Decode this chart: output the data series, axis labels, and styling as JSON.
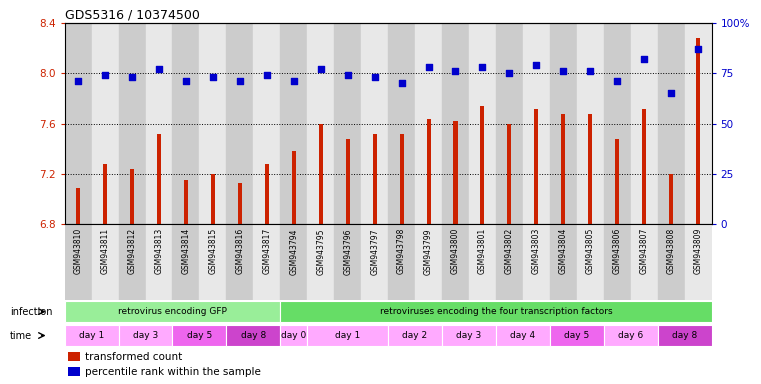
{
  "title": "GDS5316 / 10374500",
  "samples": [
    "GSM943810",
    "GSM943811",
    "GSM943812",
    "GSM943813",
    "GSM943814",
    "GSM943815",
    "GSM943816",
    "GSM943817",
    "GSM943794",
    "GSM943795",
    "GSM943796",
    "GSM943797",
    "GSM943798",
    "GSM943799",
    "GSM943800",
    "GSM943801",
    "GSM943802",
    "GSM943803",
    "GSM943804",
    "GSM943805",
    "GSM943806",
    "GSM943807",
    "GSM943808",
    "GSM943809"
  ],
  "red_values": [
    7.09,
    7.28,
    7.24,
    7.52,
    7.15,
    7.2,
    7.13,
    7.28,
    7.38,
    7.6,
    7.48,
    7.52,
    7.52,
    7.64,
    7.62,
    7.74,
    7.6,
    7.72,
    7.68,
    7.68,
    7.48,
    7.72,
    7.2,
    8.28
  ],
  "blue_values": [
    71,
    74,
    73,
    77,
    71,
    73,
    71,
    74,
    71,
    77,
    74,
    73,
    70,
    78,
    76,
    78,
    75,
    79,
    76,
    76,
    71,
    82,
    65,
    87
  ],
  "ylim_left": [
    6.8,
    8.4
  ],
  "ylim_right": [
    0,
    100
  ],
  "yticks_left": [
    6.8,
    7.2,
    7.6,
    8.0,
    8.4
  ],
  "yticks_right": [
    0,
    25,
    50,
    75,
    100
  ],
  "bar_color": "#cc2200",
  "dot_color": "#0000cc",
  "col_bg_even": "#cccccc",
  "col_bg_odd": "#e8e8e8",
  "infection_groups": [
    {
      "label": "retrovirus encoding GFP",
      "start": 0,
      "end": 7,
      "color": "#99ee99"
    },
    {
      "label": "retroviruses encoding the four transcription factors",
      "start": 8,
      "end": 23,
      "color": "#66dd66"
    }
  ],
  "time_groups": [
    {
      "label": "day 1",
      "start": 0,
      "end": 1,
      "color": "#ffaaff"
    },
    {
      "label": "day 3",
      "start": 2,
      "end": 3,
      "color": "#ffaaff"
    },
    {
      "label": "day 5",
      "start": 4,
      "end": 5,
      "color": "#ee66ee"
    },
    {
      "label": "day 8",
      "start": 6,
      "end": 7,
      "color": "#cc44cc"
    },
    {
      "label": "day 0",
      "start": 8,
      "end": 8,
      "color": "#ffaaff"
    },
    {
      "label": "day 1",
      "start": 9,
      "end": 11,
      "color": "#ffaaff"
    },
    {
      "label": "day 2",
      "start": 12,
      "end": 13,
      "color": "#ffaaff"
    },
    {
      "label": "day 3",
      "start": 14,
      "end": 15,
      "color": "#ffaaff"
    },
    {
      "label": "day 4",
      "start": 16,
      "end": 17,
      "color": "#ffaaff"
    },
    {
      "label": "day 5",
      "start": 18,
      "end": 19,
      "color": "#ee66ee"
    },
    {
      "label": "day 6",
      "start": 20,
      "end": 21,
      "color": "#ffaaff"
    },
    {
      "label": "day 8",
      "start": 22,
      "end": 23,
      "color": "#cc44cc"
    }
  ],
  "legend_items": [
    {
      "label": "transformed count",
      "color": "#cc2200"
    },
    {
      "label": "percentile rank within the sample",
      "color": "#0000cc"
    }
  ]
}
